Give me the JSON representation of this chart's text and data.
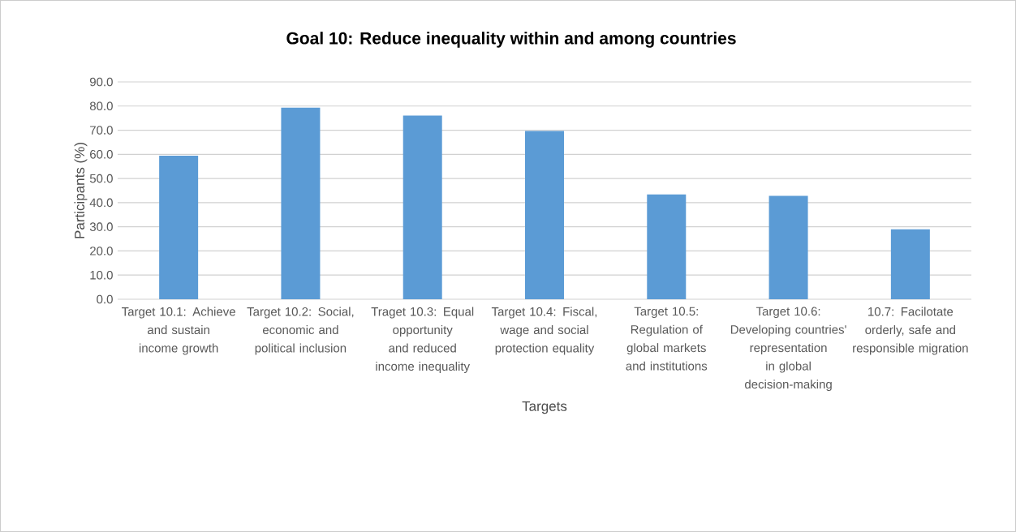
{
  "chart_data": {
    "type": "bar",
    "title": "Goal 10: Reduce inequality within and among countries",
    "xlabel": "Targets",
    "ylabel": "Participants (%)",
    "categories": [
      "Target 10.1: Achieve and sustain income growth",
      "Target 10.2: Social, economic and political inclusion",
      "Traget 10.3: Equal opportunity and reduced income inequality",
      "Target 10.4: Fiscal, wage and social protection equality",
      "Target 10.5: Regulation of global markets and institutions",
      "Target 10.6: Developing countries' representation in global decision-making",
      "10.7: Facilotate orderly, safe and responsible migration"
    ],
    "values": [
      59.4,
      79.4,
      76.1,
      69.7,
      43.4,
      42.8,
      29.0
    ],
    "color": "#5b9bd5",
    "ylim": [
      0,
      90
    ],
    "yticks": [
      {
        "value": 0,
        "label": "0.0"
      },
      {
        "value": 10,
        "label": "10.0"
      },
      {
        "value": 20,
        "label": "20.0"
      },
      {
        "value": 30,
        "label": "30.0"
      },
      {
        "value": 40,
        "label": "40.0"
      },
      {
        "value": 50,
        "label": "50.0"
      },
      {
        "value": 60,
        "label": "60.0"
      },
      {
        "value": 70,
        "label": "70.0"
      },
      {
        "value": 80,
        "label": "80.0"
      },
      {
        "value": 90,
        "label": "90.0"
      }
    ],
    "grid": "y"
  }
}
